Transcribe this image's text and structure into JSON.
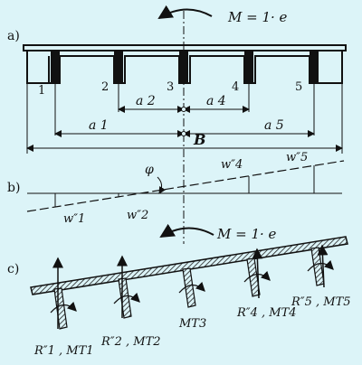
{
  "panels": {
    "a": {
      "label": "a)"
    },
    "b": {
      "label": "b)"
    },
    "c": {
      "label": "c)"
    }
  },
  "moment_label": "M = 1· e",
  "girders": [
    "1",
    "2",
    "3",
    "4",
    "5"
  ],
  "spacings": {
    "a1": "a 1",
    "a2": "a 2",
    "a4": "a 4",
    "a5": "a 5",
    "width": "B"
  },
  "rotation": {
    "angle": "φ",
    "w1": "w″1",
    "w2": "w″2",
    "w4": "w″4",
    "w5": "w″5"
  },
  "reactions": {
    "r1": "R″1 , MT1",
    "r2": "R″2 , MT2",
    "r3": "MT3",
    "r4": "R″4 , MT4",
    "r5": "R″5 , MT5"
  },
  "colors": {
    "background": "#dcf4f8",
    "ink": "#111111",
    "hatch": "#222222"
  }
}
